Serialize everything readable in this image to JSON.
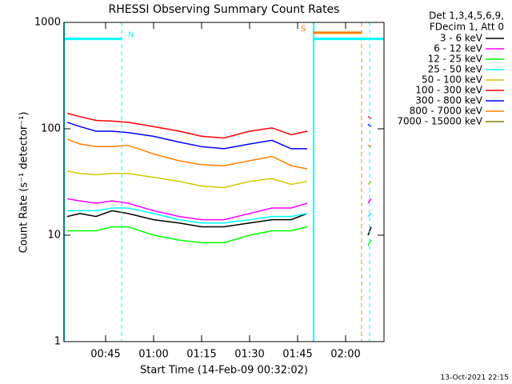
{
  "chart_data": {
    "type": "line",
    "title": "RHESSI Observing Summary Count Rates",
    "xlabel": "Start Time (14-Feb-09 00:32:02)",
    "ylabel": "Count Rate (s⁻¹ detector⁻¹)",
    "legend_header": [
      "Det 1,3,4,5,6,9,",
      "FDecim 1, Att 0"
    ],
    "footer": "13-Oct-2021 22:15",
    "log_y": true,
    "xlim": [
      32,
      132
    ],
    "xticks": [
      {
        "value": 45,
        "label": "00:45"
      },
      {
        "value": 60,
        "label": "01:00"
      },
      {
        "value": 75,
        "label": "01:15"
      },
      {
        "value": 90,
        "label": "01:30"
      },
      {
        "value": 105,
        "label": "01:45"
      },
      {
        "value": 120,
        "label": "02:00"
      }
    ],
    "ylim": [
      1,
      1000
    ],
    "yticks": [
      1,
      10,
      100,
      1000
    ],
    "x": [
      33,
      37,
      42,
      47,
      52,
      60,
      68,
      75,
      82,
      90,
      97,
      103,
      108,
      110,
      127,
      128
    ],
    "series": [
      {
        "name": "3 - 6 keV",
        "color": "#000000",
        "values": [
          15,
          16,
          15,
          17,
          16,
          14,
          13,
          12,
          12,
          13,
          14,
          14,
          16,
          null,
          10,
          12
        ]
      },
      {
        "name": "6 - 12 keV",
        "color": "#ff00ff",
        "values": [
          22,
          21,
          20,
          21,
          20,
          17,
          15,
          14,
          14,
          16,
          18,
          18,
          20,
          null,
          20,
          22
        ]
      },
      {
        "name": "12 - 25 keV",
        "color": "#00ff00",
        "values": [
          11,
          11,
          11,
          12,
          12,
          10,
          9,
          8.5,
          8.5,
          10,
          11,
          11,
          12,
          null,
          8,
          9
        ]
      },
      {
        "name": "25 - 50 keV",
        "color": "#00ffff",
        "values": [
          17,
          17,
          17,
          18,
          18,
          16,
          14,
          13,
          13,
          14,
          15,
          15,
          16,
          null,
          15,
          16
        ]
      },
      {
        "name": "50 - 100 keV",
        "color": "#d4c400",
        "values": [
          40,
          38,
          37,
          38,
          38,
          35,
          32,
          29,
          28,
          32,
          34,
          30,
          32,
          null,
          30,
          32
        ]
      },
      {
        "name": "100 - 300 keV",
        "color": "#ff0000",
        "values": [
          140,
          130,
          120,
          118,
          115,
          105,
          95,
          85,
          82,
          95,
          102,
          88,
          95,
          null,
          130,
          125
        ]
      },
      {
        "name": "300 - 800 keV",
        "color": "#0000ff",
        "values": [
          115,
          105,
          95,
          95,
          92,
          85,
          75,
          68,
          65,
          72,
          78,
          65,
          65,
          null,
          110,
          105
        ]
      },
      {
        "name": "800 - 7000 keV",
        "color": "#ff8000",
        "values": [
          80,
          72,
          68,
          68,
          70,
          58,
          50,
          46,
          45,
          50,
          55,
          45,
          42,
          null,
          70,
          68
        ]
      },
      {
        "name": "7000 - 15000 keV",
        "color": "#808000",
        "values": [
          null,
          null,
          null,
          null,
          null,
          null,
          null,
          null,
          null,
          null,
          null,
          null,
          null,
          null,
          null,
          null
        ]
      }
    ],
    "vlines": [
      {
        "x": 32,
        "color": "#00ffff",
        "dash": false
      },
      {
        "x": 50,
        "color": "#00ffff",
        "dash": true
      },
      {
        "x": 110,
        "color": "#00ffff",
        "dash": false
      },
      {
        "x": 125,
        "color": "#ff8000",
        "dash": true
      },
      {
        "x": 127.5,
        "color": "#00ffff",
        "dash": true
      }
    ],
    "hbars": [
      {
        "x": [
          32,
          50
        ],
        "y": 700,
        "color": "#00ffff"
      },
      {
        "x": [
          110,
          132
        ],
        "y": 700,
        "color": "#00ffff"
      },
      {
        "x": [
          110,
          125
        ],
        "y": 800,
        "color": "#ff8000"
      }
    ],
    "annotations": [
      {
        "text": "N",
        "x": 52,
        "y": 700,
        "color": "#00ffff"
      },
      {
        "text": "S",
        "x": 106,
        "y": 800,
        "color": "#ff8000"
      }
    ]
  }
}
